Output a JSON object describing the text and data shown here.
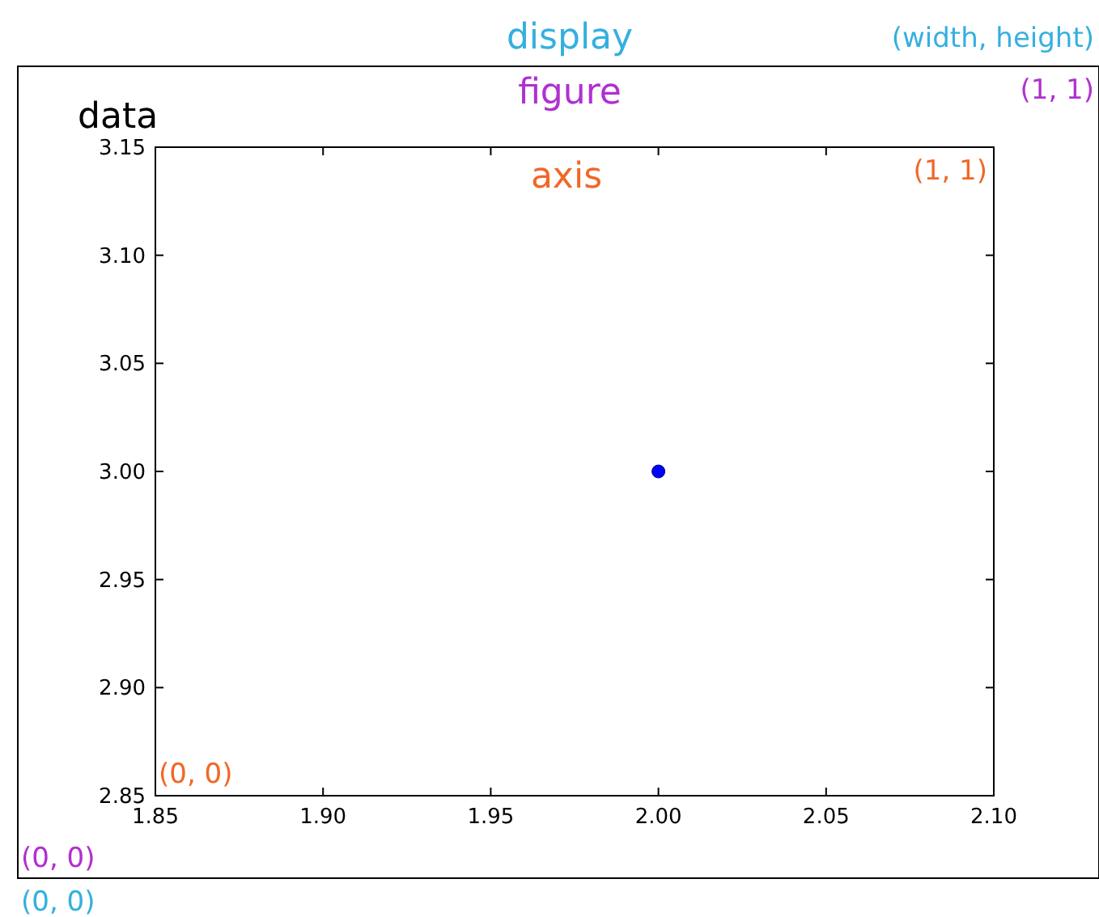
{
  "chart_data": {
    "type": "scatter",
    "x": [
      2.0
    ],
    "values": [
      3.0
    ],
    "color": "#0000ff",
    "marker": "circle",
    "xlim": [
      1.85,
      2.1
    ],
    "ylim": [
      2.85,
      3.15
    ],
    "xticks": [
      {
        "value": 1.85,
        "label": "1.85"
      },
      {
        "value": 1.9,
        "label": "1.90"
      },
      {
        "value": 1.95,
        "label": "1.95"
      },
      {
        "value": 2.0,
        "label": "2.00"
      },
      {
        "value": 2.05,
        "label": "2.05"
      },
      {
        "value": 2.1,
        "label": "2.10"
      }
    ],
    "yticks": [
      {
        "value": 2.85,
        "label": "2.85"
      },
      {
        "value": 2.9,
        "label": "2.90"
      },
      {
        "value": 2.95,
        "label": "2.95"
      },
      {
        "value": 3.0,
        "label": "3.00"
      },
      {
        "value": 3.05,
        "label": "3.05"
      },
      {
        "value": 3.1,
        "label": "3.10"
      },
      {
        "value": 3.15,
        "label": "3.15"
      }
    ],
    "annotations": [
      "display",
      "(width, height)",
      "figure",
      "(1, 1)",
      "data",
      "axis",
      "(1, 1)",
      "(0, 0)",
      "(0, 0)",
      "(0, 0)"
    ]
  }
}
